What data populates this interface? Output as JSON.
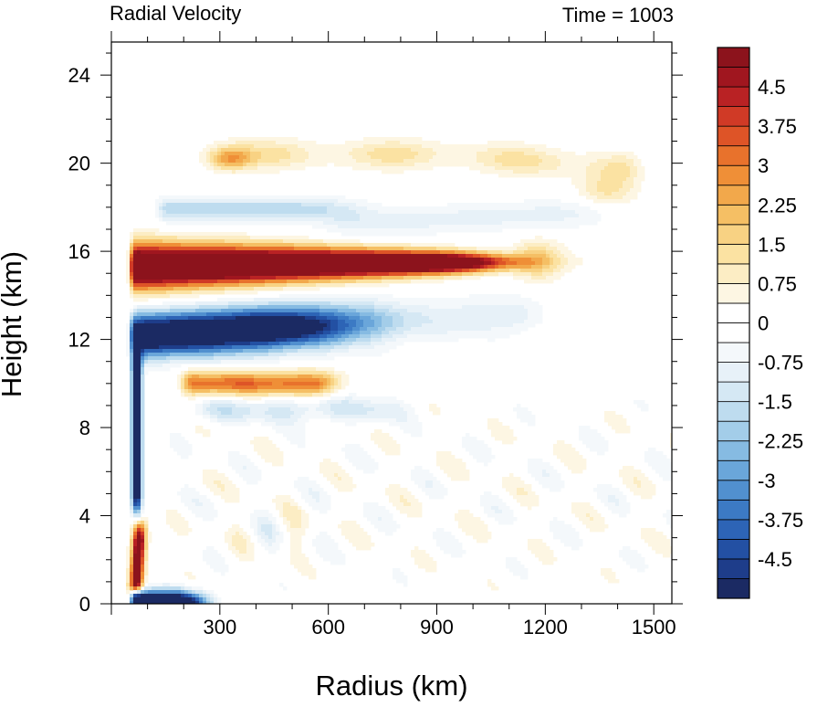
{
  "chart_data": {
    "type": "heatmap",
    "title": "Radial Velocity",
    "subtitle": "Time = 1003",
    "xlabel": "Radius (km)",
    "ylabel": "Height (km)",
    "xlim": [
      0,
      1550
    ],
    "ylim": [
      0,
      25.5
    ],
    "x_ticks": [
      "300",
      "600",
      "900",
      "1200",
      "1500"
    ],
    "x_tick_values": [
      300,
      600,
      900,
      1200,
      1500
    ],
    "y_ticks": [
      "0",
      "4",
      "8",
      "12",
      "16",
      "20",
      "24"
    ],
    "y_tick_values": [
      0,
      4,
      8,
      12,
      16,
      20,
      24
    ],
    "colorbar": {
      "min": -5.25,
      "max": 5.25,
      "step": 0.375,
      "labels": [
        "4.5",
        "3.75",
        "3",
        "2.25",
        "1.5",
        "0.75",
        "0",
        "-0.75",
        "-1.5",
        "-2.25",
        "-3",
        "-3.75",
        "-4.5"
      ],
      "label_values": [
        4.5,
        3.75,
        3,
        2.25,
        1.5,
        0.75,
        0,
        -0.75,
        -1.5,
        -2.25,
        -3,
        -3.75,
        -4.5
      ],
      "colors": [
        "#1b2a63",
        "#1e3d8a",
        "#2350a3",
        "#2d64b6",
        "#3c7ac4",
        "#5190cf",
        "#6aa6da",
        "#86bbe2",
        "#a3cde9",
        "#bedcef",
        "#d5e8f4",
        "#e7f1f8",
        "#f4f8fb",
        "#ffffff",
        "#ffffff",
        "#fdf6e3",
        "#fcedc4",
        "#fbe2a2",
        "#f8d283",
        "#f5bf64",
        "#f2a84b",
        "#ef8f37",
        "#e8722c",
        "#de5427",
        "#d03a26",
        "#b92224",
        "#a0161f",
        "#8c131c"
      ]
    },
    "features": [
      {
        "name": "upper-level outflow",
        "r0": 55,
        "r1": 1150,
        "z_start": 15.3,
        "z_end": 15.5,
        "peak": 6.5
      },
      {
        "name": "upper-level inflow",
        "r0": 60,
        "r1": 1200,
        "z_start": 12.0,
        "z_end": 13.0,
        "peak": -6.0
      },
      {
        "name": "low-level inflow",
        "r0": 45,
        "r1": 300,
        "z_start": 0.4,
        "z_end": 0.3,
        "peak": -7.0
      },
      {
        "name": "mid-level outflow",
        "r0": 190,
        "r1": 650,
        "z_start": 10.0,
        "z_end": 10.0,
        "peak": 2.8
      },
      {
        "name": "upper outflow band",
        "r0": 250,
        "r1": 1450,
        "z_start": 20.5,
        "z_end": 19.0,
        "peak": 1.3
      },
      {
        "name": "upper inflow band",
        "r0": 120,
        "r1": 1400,
        "z_start": 17.8,
        "z_end": 17.5,
        "peak": -1.6
      },
      {
        "name": "inner-core lower outflow",
        "r0": 40,
        "r1": 160,
        "z_start": 2.5,
        "z_end": 3.5,
        "peak": 4.5
      }
    ]
  }
}
